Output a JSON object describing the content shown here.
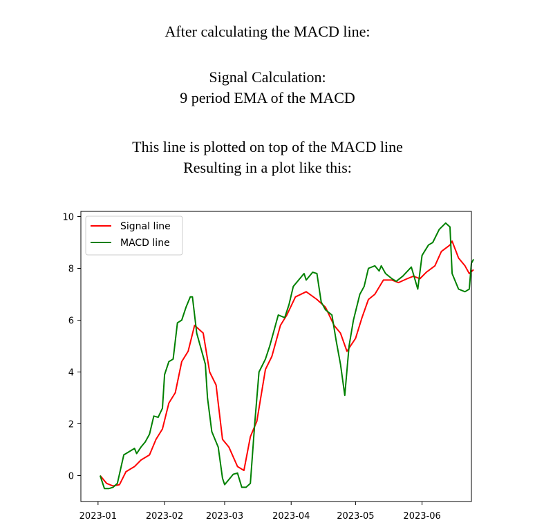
{
  "intro": {
    "line1": "After calculating the MACD line:",
    "line2": "Signal Calculation:",
    "line3": "9 period EMA of the MACD",
    "line4": "This line is plotted on top of the MACD line",
    "line5": "Resulting in a plot like this:"
  },
  "chart_data": {
    "type": "line",
    "xlabel": "",
    "ylabel": "",
    "ylim": [
      -1.0,
      10.2
    ],
    "yticks": [
      0,
      2,
      4,
      6,
      8,
      10
    ],
    "xticks": [
      {
        "label": "2023-01",
        "date": "2023-01-01"
      },
      {
        "label": "2023-02",
        "date": "2023-02-01"
      },
      {
        "label": "2023-03",
        "date": "2023-03-01"
      },
      {
        "label": "2023-04",
        "date": "2023-04-01"
      },
      {
        "label": "2023-05",
        "date": "2023-05-01"
      },
      {
        "label": "2023-06",
        "date": "2023-06-01"
      }
    ],
    "xlim": [
      "2022-12-24",
      "2023-06-24"
    ],
    "grid": false,
    "legend_position": "top-left",
    "series": [
      {
        "name": "Signal line",
        "color": "#ff0000",
        "points": [
          [
            "2023-01-02",
            0.0
          ],
          [
            "2023-01-05",
            -0.3
          ],
          [
            "2023-01-08",
            -0.4
          ],
          [
            "2023-01-11",
            -0.35
          ],
          [
            "2023-01-14",
            0.15
          ],
          [
            "2023-01-18",
            0.35
          ],
          [
            "2023-01-21",
            0.6
          ],
          [
            "2023-01-25",
            0.8
          ],
          [
            "2023-01-28",
            1.4
          ],
          [
            "2023-01-31",
            1.8
          ],
          [
            "2023-02-03",
            2.8
          ],
          [
            "2023-02-06",
            3.2
          ],
          [
            "2023-02-09",
            4.4
          ],
          [
            "2023-02-12",
            4.8
          ],
          [
            "2023-02-15",
            5.8
          ],
          [
            "2023-02-19",
            5.5
          ],
          [
            "2023-02-22",
            4.0
          ],
          [
            "2023-02-25",
            3.5
          ],
          [
            "2023-02-28",
            1.4
          ],
          [
            "2023-03-03",
            1.1
          ],
          [
            "2023-03-07",
            0.35
          ],
          [
            "2023-03-10",
            0.2
          ],
          [
            "2023-03-13",
            1.5
          ],
          [
            "2023-03-16",
            2.1
          ],
          [
            "2023-03-20",
            4.1
          ],
          [
            "2023-03-23",
            4.6
          ],
          [
            "2023-03-27",
            5.8
          ],
          [
            "2023-03-30",
            6.2
          ],
          [
            "2023-04-03",
            6.9
          ],
          [
            "2023-04-08",
            7.1
          ],
          [
            "2023-04-13",
            6.8
          ],
          [
            "2023-04-17",
            6.5
          ],
          [
            "2023-04-21",
            5.8
          ],
          [
            "2023-04-24",
            5.5
          ],
          [
            "2023-04-27",
            4.8
          ],
          [
            "2023-05-01",
            5.3
          ],
          [
            "2023-05-04",
            6.1
          ],
          [
            "2023-05-07",
            6.8
          ],
          [
            "2023-05-10",
            7.0
          ],
          [
            "2023-05-14",
            7.55
          ],
          [
            "2023-05-18",
            7.55
          ],
          [
            "2023-05-21",
            7.45
          ],
          [
            "2023-05-25",
            7.6
          ],
          [
            "2023-05-28",
            7.7
          ],
          [
            "2023-05-31",
            7.6
          ],
          [
            "2023-06-03",
            7.85
          ],
          [
            "2023-06-07",
            8.1
          ],
          [
            "2023-06-10",
            8.65
          ],
          [
            "2023-06-14",
            8.9
          ],
          [
            "2023-06-15",
            9.05
          ],
          [
            "2023-06-18",
            8.4
          ],
          [
            "2023-06-21",
            8.1
          ],
          [
            "2023-06-23",
            7.8
          ],
          [
            "2023-06-25",
            7.95
          ]
        ]
      },
      {
        "name": "MACD line",
        "color": "#008000",
        "points": [
          [
            "2023-01-02",
            0.0
          ],
          [
            "2023-01-04",
            -0.5
          ],
          [
            "2023-01-06",
            -0.5
          ],
          [
            "2023-01-08",
            -0.45
          ],
          [
            "2023-01-10",
            -0.3
          ],
          [
            "2023-01-13",
            0.8
          ],
          [
            "2023-01-16",
            0.95
          ],
          [
            "2023-01-18",
            1.05
          ],
          [
            "2023-01-19",
            0.85
          ],
          [
            "2023-01-21",
            1.1
          ],
          [
            "2023-01-23",
            1.3
          ],
          [
            "2023-01-25",
            1.6
          ],
          [
            "2023-01-27",
            2.3
          ],
          [
            "2023-01-29",
            2.25
          ],
          [
            "2023-01-31",
            2.6
          ],
          [
            "2023-02-01",
            3.9
          ],
          [
            "2023-02-03",
            4.4
          ],
          [
            "2023-02-05",
            4.5
          ],
          [
            "2023-02-07",
            5.9
          ],
          [
            "2023-02-09",
            6.0
          ],
          [
            "2023-02-11",
            6.5
          ],
          [
            "2023-02-13",
            6.9
          ],
          [
            "2023-02-14",
            6.9
          ],
          [
            "2023-02-16",
            5.5
          ],
          [
            "2023-02-20",
            4.3
          ],
          [
            "2023-02-21",
            3.0
          ],
          [
            "2023-02-23",
            1.7
          ],
          [
            "2023-02-26",
            1.1
          ],
          [
            "2023-02-28",
            -0.1
          ],
          [
            "2023-03-01",
            -0.35
          ],
          [
            "2023-03-03",
            -0.15
          ],
          [
            "2023-03-05",
            0.05
          ],
          [
            "2023-03-07",
            0.1
          ],
          [
            "2023-03-09",
            -0.45
          ],
          [
            "2023-03-11",
            -0.45
          ],
          [
            "2023-03-13",
            -0.3
          ],
          [
            "2023-03-15",
            2.0
          ],
          [
            "2023-03-17",
            4.0
          ],
          [
            "2023-03-20",
            4.5
          ],
          [
            "2023-03-22",
            5.0
          ],
          [
            "2023-03-24",
            5.6
          ],
          [
            "2023-03-26",
            6.2
          ],
          [
            "2023-03-29",
            6.1
          ],
          [
            "2023-03-31",
            6.6
          ],
          [
            "2023-04-02",
            7.3
          ],
          [
            "2023-04-05",
            7.6
          ],
          [
            "2023-04-07",
            7.8
          ],
          [
            "2023-04-08",
            7.55
          ],
          [
            "2023-04-11",
            7.85
          ],
          [
            "2023-04-13",
            7.8
          ],
          [
            "2023-04-15",
            6.7
          ],
          [
            "2023-04-17",
            6.4
          ],
          [
            "2023-04-20",
            6.2
          ],
          [
            "2023-04-22",
            5.2
          ],
          [
            "2023-04-24",
            4.3
          ],
          [
            "2023-04-26",
            3.1
          ],
          [
            "2023-04-28",
            5.0
          ],
          [
            "2023-04-30",
            6.0
          ],
          [
            "2023-05-03",
            7.0
          ],
          [
            "2023-05-05",
            7.3
          ],
          [
            "2023-05-07",
            8.0
          ],
          [
            "2023-05-10",
            8.1
          ],
          [
            "2023-05-12",
            7.9
          ],
          [
            "2023-05-13",
            8.1
          ],
          [
            "2023-05-15",
            7.8
          ],
          [
            "2023-05-18",
            7.6
          ],
          [
            "2023-05-20",
            7.5
          ],
          [
            "2023-05-23",
            7.7
          ],
          [
            "2023-05-27",
            8.05
          ],
          [
            "2023-05-30",
            7.2
          ],
          [
            "2023-06-01",
            8.5
          ],
          [
            "2023-06-04",
            8.9
          ],
          [
            "2023-06-06",
            9.0
          ],
          [
            "2023-06-09",
            9.5
          ],
          [
            "2023-06-12",
            9.75
          ],
          [
            "2023-06-14",
            9.6
          ],
          [
            "2023-06-15",
            7.8
          ],
          [
            "2023-06-18",
            7.2
          ],
          [
            "2023-06-21",
            7.1
          ],
          [
            "2023-06-23",
            7.2
          ],
          [
            "2023-06-24",
            8.2
          ],
          [
            "2023-06-25",
            8.35
          ]
        ]
      }
    ]
  }
}
